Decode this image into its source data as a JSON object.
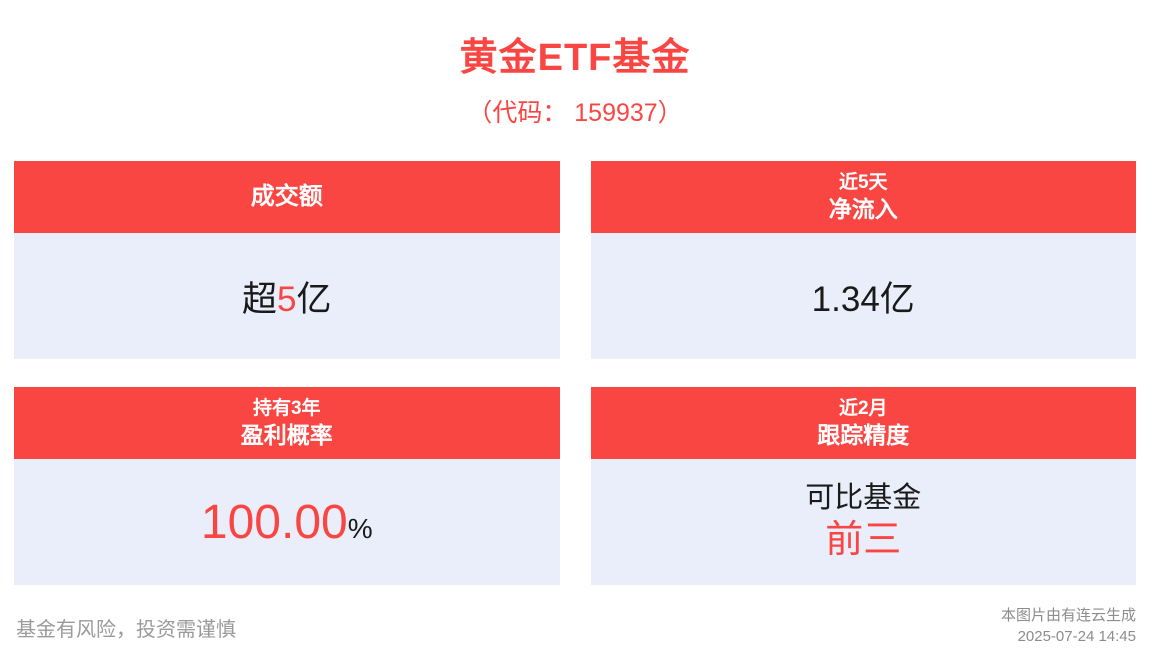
{
  "title": "黄金ETF基金",
  "subtitle": "（代码： 159937）",
  "cards": {
    "turnover": {
      "header": "成交额",
      "value": {
        "prefix": "超",
        "number": "5",
        "suffix": "亿"
      }
    },
    "inflow": {
      "header_top": "近5天",
      "header_main": "净流入",
      "value": {
        "number": "1.34",
        "suffix": "亿"
      }
    },
    "profit": {
      "header_top": "持有3年",
      "header_main": "盈利概率",
      "value": {
        "number": "100.00",
        "suffix": "%"
      }
    },
    "tracking": {
      "header_top": "近2月",
      "header_main": "跟踪精度",
      "value": {
        "line1": "可比基金",
        "line2": "前三"
      }
    }
  },
  "footer": {
    "disclaimer": "基金有风险，投资需谨慎",
    "source": "本图片由有连云生成",
    "timestamp": "2025-07-24 14:45"
  },
  "colors": {
    "accent_red": "#fa4643",
    "card_body_bg": "#e9eefa",
    "text_ink": "#1a1a1a",
    "muted_gray": "#9a9a9a"
  }
}
